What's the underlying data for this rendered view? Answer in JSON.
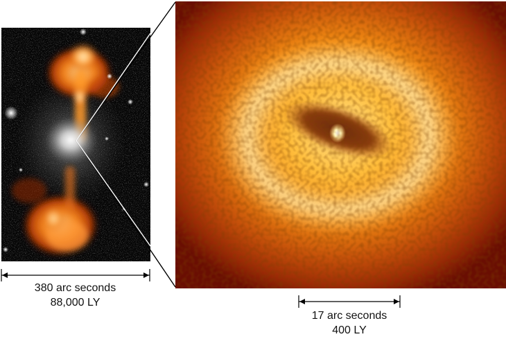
{
  "left_image": {
    "scale_angle": "380 arc seconds",
    "scale_distance": "88,000 LY"
  },
  "right_image": {
    "scale_angle": "17 arc seconds",
    "scale_distance": "400 LY"
  }
}
